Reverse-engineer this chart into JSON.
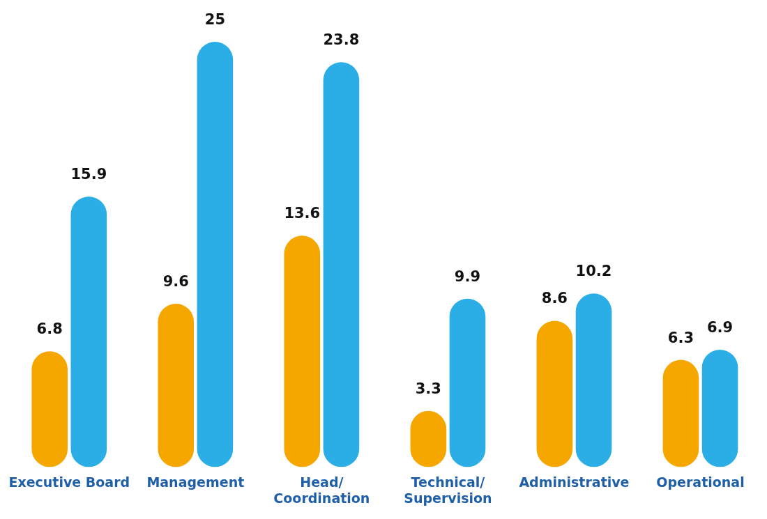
{
  "chart_data": {
    "type": "bar",
    "categories": [
      "Executive Board",
      "Management",
      "Head/ Coordination",
      "Technical/ Supervision",
      "Administrative",
      "Operational"
    ],
    "series": [
      {
        "color": "#f5a700",
        "values": [
          6.8,
          9.6,
          13.6,
          3.3,
          8.6,
          6.3
        ]
      },
      {
        "color": "#2baee5",
        "values": [
          15.9,
          25,
          23.8,
          9.9,
          10.2,
          6.9
        ]
      }
    ],
    "data_labels": true,
    "grid": false,
    "legend": false
  }
}
